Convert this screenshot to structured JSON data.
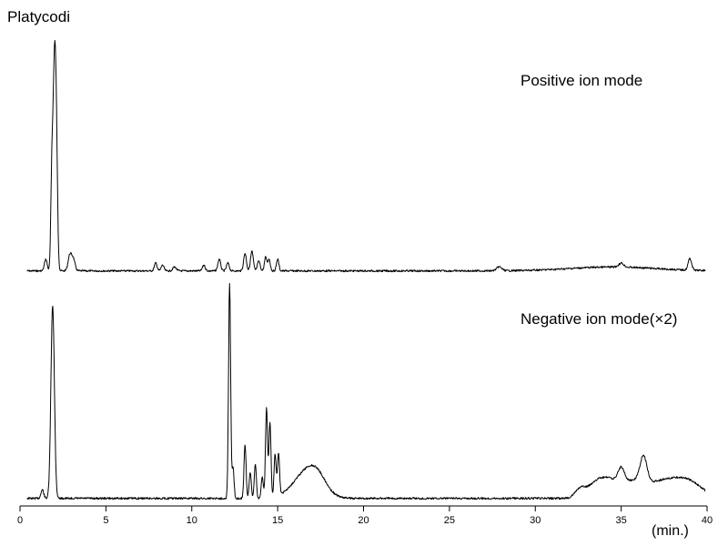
{
  "chart_data": {
    "type": "line",
    "title": "Platycodi",
    "xlabel": "(min.)",
    "ylabel": "",
    "xlim": [
      0,
      40
    ],
    "grid": false,
    "x_ticks": [
      "0",
      "5",
      "10",
      "15",
      "20",
      "25",
      "30",
      "35",
      "40"
    ],
    "series": [
      {
        "name": "Positive ion mode",
        "baseline": 2,
        "peaks": [
          [
            1.5,
            6,
            0.08
          ],
          [
            1.85,
            45,
            0.06
          ],
          [
            2.0,
            100,
            0.08
          ],
          [
            2.12,
            55,
            0.07
          ],
          [
            2.9,
            8,
            0.1
          ],
          [
            3.1,
            6,
            0.1
          ],
          [
            7.9,
            4,
            0.08
          ],
          [
            8.3,
            3,
            0.08
          ],
          [
            9.0,
            2,
            0.1
          ],
          [
            10.7,
            3,
            0.08
          ],
          [
            11.6,
            6,
            0.08
          ],
          [
            12.1,
            4,
            0.08
          ],
          [
            13.1,
            9,
            0.08
          ],
          [
            13.5,
            10,
            0.08
          ],
          [
            13.9,
            5,
            0.08
          ],
          [
            14.3,
            7,
            0.07
          ],
          [
            14.5,
            6,
            0.07
          ],
          [
            15.0,
            6,
            0.07
          ],
          [
            27.9,
            2,
            0.15
          ],
          [
            34.5,
            2,
            2.5
          ],
          [
            35.0,
            2,
            0.15
          ],
          [
            39.0,
            6,
            0.1
          ]
        ]
      },
      {
        "name": "Negative ion mode(×2)",
        "baseline": 1,
        "peaks": [
          [
            1.3,
            4,
            0.08
          ],
          [
            1.9,
            90,
            0.1
          ],
          [
            12.2,
            100,
            0.06
          ],
          [
            12.4,
            14,
            0.06
          ],
          [
            13.1,
            25,
            0.06
          ],
          [
            13.4,
            12,
            0.06
          ],
          [
            13.7,
            16,
            0.06
          ],
          [
            14.1,
            10,
            0.06
          ],
          [
            14.35,
            42,
            0.06
          ],
          [
            14.55,
            35,
            0.06
          ],
          [
            14.85,
            20,
            0.06
          ],
          [
            15.05,
            20,
            0.06
          ],
          [
            16.7,
            12,
            0.8
          ],
          [
            17.3,
            5,
            0.5
          ],
          [
            32.6,
            4,
            0.3
          ],
          [
            33.6,
            8,
            0.5
          ],
          [
            34.4,
            6,
            0.4
          ],
          [
            35.0,
            8,
            0.2
          ],
          [
            35.6,
            6,
            0.6
          ],
          [
            36.3,
            12,
            0.2
          ],
          [
            37.5,
            8,
            1.2
          ],
          [
            39.0,
            5,
            0.8
          ]
        ]
      }
    ]
  }
}
